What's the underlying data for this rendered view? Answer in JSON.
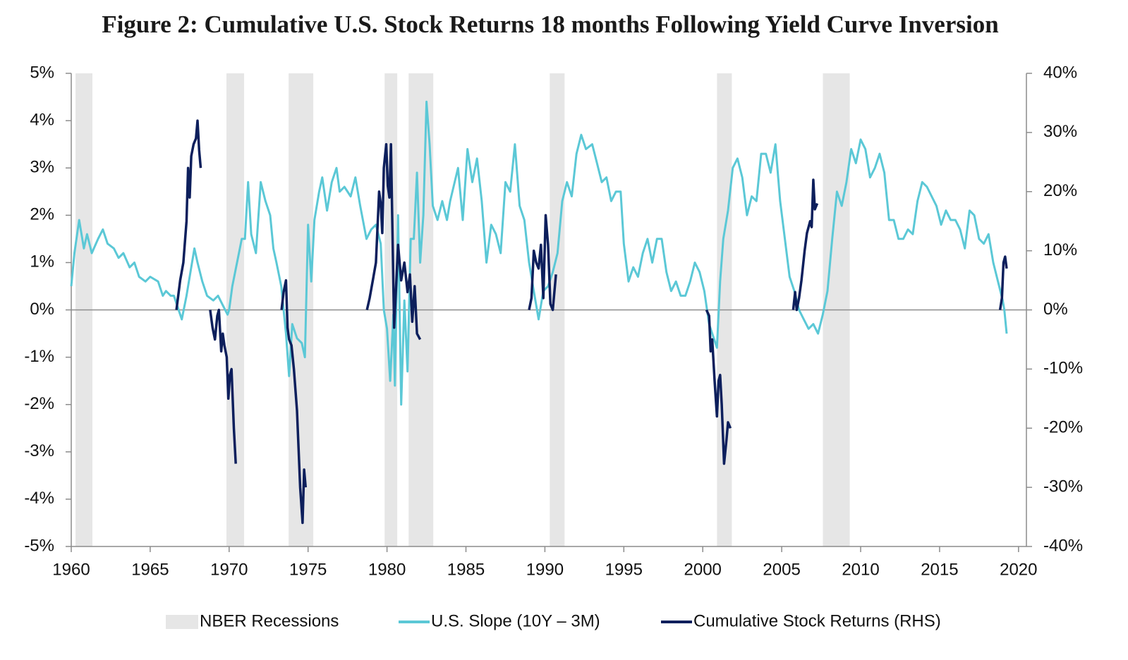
{
  "chart_data": {
    "type": "line",
    "title": "Figure 2: Cumulative U.S. Stock Returns 18 months Following Yield Curve Inversion",
    "xlim": [
      1960,
      2020.5
    ],
    "xticks": [
      1960,
      1965,
      1970,
      1975,
      1980,
      1985,
      1990,
      1995,
      2000,
      2005,
      2010,
      2015,
      2020
    ],
    "ylim": [
      -5,
      5
    ],
    "yticks": [
      {
        "value": -5,
        "label": "-5%"
      },
      {
        "value": -4,
        "label": "-4%"
      },
      {
        "value": -3,
        "label": "-3%"
      },
      {
        "value": -2,
        "label": "-2%"
      },
      {
        "value": -1,
        "label": "-1%"
      },
      {
        "value": 0,
        "label": "0%"
      },
      {
        "value": 1,
        "label": "1%"
      },
      {
        "value": 2,
        "label": "2%"
      },
      {
        "value": 3,
        "label": "3%"
      },
      {
        "value": 4,
        "label": "4%"
      },
      {
        "value": 5,
        "label": "5%"
      }
    ],
    "y2lim": [
      -40,
      40
    ],
    "y2ticks": [
      {
        "value": -40,
        "label": "-40%"
      },
      {
        "value": -30,
        "label": "-30%"
      },
      {
        "value": -20,
        "label": "-20%"
      },
      {
        "value": -10,
        "label": "-10%"
      },
      {
        "value": 0,
        "label": "0%"
      },
      {
        "value": 10,
        "label": "10%"
      },
      {
        "value": 20,
        "label": "20%"
      },
      {
        "value": 30,
        "label": "30%"
      },
      {
        "value": 40,
        "label": "40%"
      }
    ],
    "legend": "bottom",
    "recessions": {
      "name": "NBER Recessions",
      "color": "#e6e6e6",
      "spans": [
        [
          1960.27,
          1961.34
        ],
        [
          1969.83,
          1970.95
        ],
        [
          1973.77,
          1975.33
        ],
        [
          1979.85,
          1980.65
        ],
        [
          1981.37,
          1982.93
        ],
        [
          1990.31,
          1991.25
        ],
        [
          2000.9,
          2001.84
        ],
        [
          2007.61,
          2009.31
        ]
      ]
    },
    "series": [
      {
        "name": "U.S. Slope (10Y – 3M)",
        "color": "#5bc8d6",
        "axis": "y",
        "x": [
          1960.0,
          1960.2,
          1960.5,
          1960.8,
          1961.0,
          1961.3,
          1961.7,
          1962.0,
          1962.3,
          1962.7,
          1963.0,
          1963.3,
          1963.7,
          1964.0,
          1964.3,
          1964.7,
          1965.0,
          1965.5,
          1965.8,
          1966.0,
          1966.3,
          1966.5,
          1966.8,
          1967.0,
          1967.3,
          1967.6,
          1967.8,
          1968.0,
          1968.3,
          1968.6,
          1969.0,
          1969.3,
          1969.6,
          1969.9,
          1970.0,
          1970.2,
          1970.5,
          1970.8,
          1971.0,
          1971.2,
          1971.4,
          1971.7,
          1972.0,
          1972.3,
          1972.6,
          1972.8,
          1973.0,
          1973.3,
          1973.6,
          1973.8,
          1974.0,
          1974.3,
          1974.6,
          1974.8,
          1975.0,
          1975.2,
          1975.4,
          1975.7,
          1975.9,
          1976.2,
          1976.5,
          1976.8,
          1977.0,
          1977.3,
          1977.7,
          1978.0,
          1978.3,
          1978.7,
          1979.0,
          1979.3,
          1979.6,
          1979.8,
          1980.0,
          1980.2,
          1980.4,
          1980.5,
          1980.7,
          1980.9,
          1981.1,
          1981.3,
          1981.5,
          1981.7,
          1981.9,
          1982.1,
          1982.3,
          1982.5,
          1982.7,
          1982.9,
          1983.2,
          1983.5,
          1983.8,
          1984.0,
          1984.5,
          1984.8,
          1985.1,
          1985.4,
          1985.7,
          1986.0,
          1986.3,
          1986.6,
          1986.9,
          1987.2,
          1987.5,
          1987.8,
          1988.1,
          1988.4,
          1988.7,
          1989.0,
          1989.3,
          1989.6,
          1989.9,
          1990.2,
          1990.5,
          1990.8,
          1991.1,
          1991.4,
          1991.7,
          1992.0,
          1992.3,
          1992.6,
          1993.0,
          1993.3,
          1993.6,
          1993.9,
          1994.2,
          1994.5,
          1994.8,
          1995.0,
          1995.3,
          1995.6,
          1995.9,
          1996.2,
          1996.5,
          1996.8,
          1997.1,
          1997.4,
          1997.7,
          1998.0,
          1998.3,
          1998.6,
          1998.9,
          1999.2,
          1999.5,
          1999.8,
          2000.1,
          2000.4,
          2000.7,
          2000.9,
          2001.1,
          2001.3,
          2001.6,
          2001.9,
          2002.2,
          2002.5,
          2002.8,
          2003.1,
          2003.4,
          2003.7,
          2004.0,
          2004.3,
          2004.6,
          2004.9,
          2005.2,
          2005.5,
          2005.8,
          2006.1,
          2006.4,
          2006.7,
          2007.0,
          2007.3,
          2007.6,
          2007.9,
          2008.2,
          2008.5,
          2008.8,
          2009.1,
          2009.4,
          2009.7,
          2010.0,
          2010.3,
          2010.6,
          2010.9,
          2011.2,
          2011.5,
          2011.8,
          2012.1,
          2012.4,
          2012.7,
          2013.0,
          2013.3,
          2013.6,
          2013.9,
          2014.2,
          2014.5,
          2014.8,
          2015.1,
          2015.4,
          2015.7,
          2016.0,
          2016.3,
          2016.6,
          2016.9,
          2017.2,
          2017.5,
          2017.8,
          2018.1,
          2018.4,
          2018.7,
          2019.0,
          2019.1,
          2019.25
        ],
        "values": [
          0.5,
          1.2,
          1.9,
          1.3,
          1.6,
          1.2,
          1.5,
          1.7,
          1.4,
          1.3,
          1.1,
          1.2,
          0.9,
          1.0,
          0.7,
          0.6,
          0.7,
          0.6,
          0.3,
          0.4,
          0.3,
          0.3,
          0.0,
          -0.2,
          0.3,
          0.9,
          1.3,
          1.0,
          0.6,
          0.3,
          0.2,
          0.3,
          0.1,
          -0.1,
          0.0,
          0.5,
          1.0,
          1.5,
          1.5,
          2.7,
          1.6,
          1.2,
          2.7,
          2.3,
          2.0,
          1.3,
          1.0,
          0.5,
          -0.5,
          -1.4,
          -0.3,
          -0.6,
          -0.7,
          -1.0,
          1.8,
          0.6,
          1.9,
          2.5,
          2.8,
          2.1,
          2.7,
          3.0,
          2.5,
          2.6,
          2.4,
          2.8,
          2.2,
          1.5,
          1.7,
          1.8,
          1.4,
          0.0,
          -0.4,
          -1.5,
          -0.1,
          -1.6,
          2.0,
          -2.0,
          0.2,
          -1.3,
          1.5,
          1.5,
          2.9,
          1.0,
          2.0,
          4.4,
          3.5,
          2.2,
          1.9,
          2.3,
          1.9,
          2.3,
          3.0,
          1.9,
          3.4,
          2.7,
          3.2,
          2.3,
          1.0,
          1.8,
          1.6,
          1.2,
          2.7,
          2.5,
          3.5,
          2.2,
          1.9,
          1.0,
          0.4,
          -0.2,
          0.4,
          0.5,
          0.8,
          1.2,
          2.3,
          2.7,
          2.4,
          3.3,
          3.7,
          3.4,
          3.5,
          3.1,
          2.7,
          2.8,
          2.3,
          2.5,
          2.5,
          1.4,
          0.6,
          0.9,
          0.7,
          1.2,
          1.5,
          1.0,
          1.5,
          1.5,
          0.8,
          0.4,
          0.6,
          0.3,
          0.3,
          0.6,
          1.0,
          0.8,
          0.4,
          -0.3,
          -0.6,
          -0.8,
          0.6,
          1.5,
          2.1,
          3.0,
          3.2,
          2.8,
          2.0,
          2.4,
          2.3,
          3.3,
          3.3,
          2.9,
          3.5,
          2.3,
          1.5,
          0.7,
          0.4,
          0.0,
          -0.2,
          -0.4,
          -0.3,
          -0.5,
          -0.1,
          0.4,
          1.5,
          2.5,
          2.2,
          2.7,
          3.4,
          3.1,
          3.6,
          3.4,
          2.8,
          3.0,
          3.3,
          2.9,
          1.9,
          1.9,
          1.5,
          1.5,
          1.7,
          1.6,
          2.3,
          2.7,
          2.6,
          2.4,
          2.2,
          1.8,
          2.1,
          1.9,
          1.9,
          1.7,
          1.3,
          2.1,
          2.0,
          1.5,
          1.4,
          1.6,
          1.0,
          0.6,
          0.2,
          0.0,
          -0.5
        ]
      },
      {
        "name": "Cumulative Stock Returns (RHS)",
        "color": "#0d1f5c",
        "axis": "y2",
        "x": [
          1966.66,
          1966.9,
          1967.1,
          1967.3,
          1967.4,
          1967.5,
          1967.6,
          1967.75,
          1967.9,
          1968.0,
          1968.1,
          1968.2,
          null,
          1968.8,
          1968.95,
          1969.1,
          1969.25,
          1969.35,
          1969.5,
          1969.6,
          1969.7,
          1969.85,
          1969.95,
          1970.05,
          1970.15,
          1970.3,
          1970.42,
          null,
          1973.32,
          1973.45,
          1973.6,
          1973.7,
          1973.8,
          1973.95,
          1974.1,
          1974.3,
          1974.5,
          1974.65,
          1974.75,
          1974.85,
          null,
          1978.73,
          1978.9,
          1979.1,
          1979.3,
          1979.5,
          1979.6,
          1979.7,
          1979.8,
          1979.95,
          1980.05,
          1980.15,
          1980.25,
          1980.45,
          1980.7,
          1980.9,
          1981.1,
          1981.3,
          1981.45,
          1981.6,
          1981.75,
          1981.9,
          1982.1,
          null,
          1989.0,
          1989.15,
          1989.3,
          1989.45,
          1989.6,
          1989.75,
          1989.9,
          1990.05,
          1990.2,
          1990.35,
          1990.5,
          1990.7,
          null,
          2000.23,
          2000.4,
          2000.5,
          2000.6,
          2000.75,
          2000.9,
          2001.0,
          2001.1,
          2001.2,
          2001.35,
          2001.5,
          2001.6,
          2001.75,
          null,
          2005.73,
          2005.85,
          2005.95,
          2006.1,
          2006.25,
          2006.45,
          2006.6,
          2006.8,
          2006.9,
          2007.0,
          2007.1,
          2007.25,
          null,
          2018.83,
          2018.95,
          2019.05,
          2019.15,
          2019.25
        ],
        "values": [
          0,
          5,
          8,
          15,
          24,
          19,
          26,
          28,
          29,
          32,
          27,
          24,
          null,
          0,
          -3,
          -5,
          -1,
          0,
          -7,
          -4,
          -6,
          -8,
          -15,
          -11,
          -10,
          -20,
          -26,
          null,
          0,
          3,
          5,
          -3,
          -5,
          -6,
          -10,
          -17,
          -30,
          -36,
          -27,
          -30,
          null,
          0,
          2,
          5,
          8,
          20,
          18,
          13,
          24,
          28,
          21,
          19,
          28,
          -3,
          11,
          5,
          8,
          3,
          6,
          -2,
          4,
          -4,
          -5,
          null,
          0,
          2,
          10,
          8,
          7,
          11,
          2,
          16,
          11,
          1,
          0,
          6,
          null,
          0,
          -1,
          -7,
          -5,
          -12,
          -18,
          -12,
          -11,
          -16,
          -26,
          -22,
          -19,
          -20,
          null,
          0,
          3,
          0,
          2,
          5,
          10,
          13,
          15,
          14,
          22,
          17,
          18,
          null,
          0,
          2,
          8,
          9,
          7
        ]
      }
    ]
  }
}
